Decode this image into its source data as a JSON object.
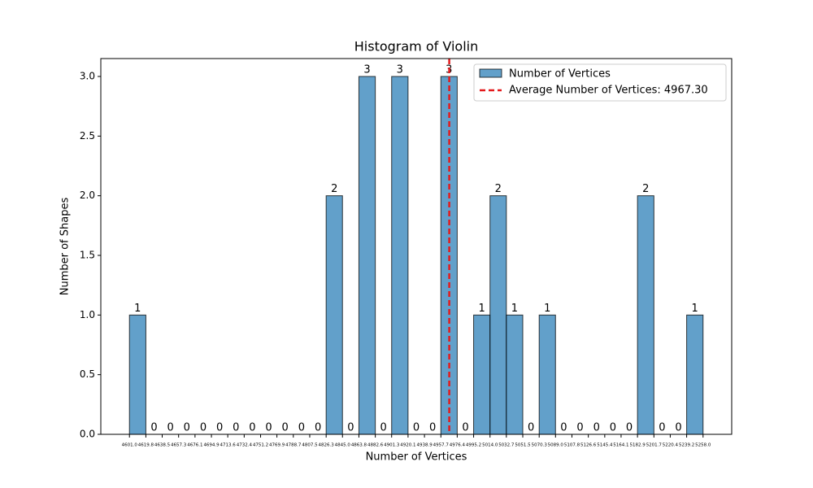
{
  "chart_data": {
    "type": "histogram",
    "title": "Histogram of Violin",
    "x_label": "Number of Vertices",
    "y_label": "Number of Shapes",
    "bins": [
      {
        "value": 4601.0,
        "label": "4601.0"
      },
      4619.8,
      4638.5,
      4657.3,
      4676.1,
      4694.9,
      4713.6,
      4732.4,
      4751.2,
      4769.9,
      4788.7,
      4807.5,
      4826.3,
      {
        "value": 4845.0,
        "label": "4845.0"
      },
      4863.8,
      4882.6,
      4901.3,
      4920.1,
      4938.9,
      4957.7,
      4976.4,
      4995.2,
      {
        "value": 5014.0,
        "label": "5014.0"
      },
      5032.7,
      5051.5,
      5070.3,
      {
        "value": 5089.0,
        "label": "5089.0"
      },
      5107.8,
      5126.6,
      5145.4,
      5164.1,
      5182.9,
      5201.7,
      5220.4,
      5239.2,
      {
        "value": 5258.0,
        "label": "5258.0"
      }
    ],
    "counts": [
      1,
      0,
      0,
      0,
      0,
      0,
      0,
      0,
      0,
      0,
      0,
      0,
      2,
      0,
      3,
      0,
      3,
      0,
      0,
      3,
      0,
      1,
      2,
      1,
      0,
      1,
      0,
      0,
      0,
      0,
      0,
      2,
      0,
      0,
      1
    ],
    "series_name": "Number of Vertices",
    "color": "#1f77b4",
    "mean": 4967.3,
    "mean_label": "Average Number of Vertices: 4967.30",
    "mean_color": "#e41a1c",
    "xlim": [
      4568.2,
      5290.8
    ],
    "ylim": [
      0,
      3.15
    ],
    "yticks": [
      {
        "value": 0,
        "label": "0.0"
      },
      0.5,
      {
        "value": 1,
        "label": "1.0"
      },
      1.5,
      {
        "value": 2,
        "label": "2.0"
      },
      2.5,
      {
        "value": 3,
        "label": "3.0"
      }
    ],
    "legend": "upper right"
  }
}
